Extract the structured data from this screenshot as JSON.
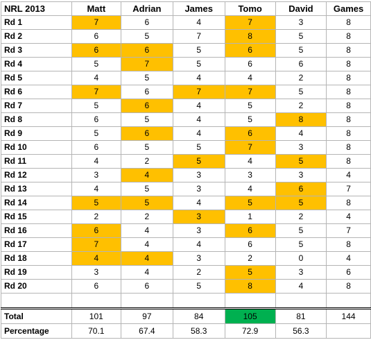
{
  "colors": {
    "highlight": "#ffc000",
    "best_total": "#00b050",
    "grid": "#b4b4b4"
  },
  "corner_label": "NRL 2013",
  "columns": [
    "Matt",
    "Adrian",
    "James",
    "Tomo",
    "David",
    "Games"
  ],
  "rounds": [
    {
      "label": "Rd 1",
      "values": [
        "7",
        "6",
        "4",
        "7",
        "3",
        "8"
      ],
      "highlight": [
        true,
        false,
        false,
        true,
        false,
        false
      ]
    },
    {
      "label": "Rd 2",
      "values": [
        "6",
        "5",
        "7",
        "8",
        "5",
        "8"
      ],
      "highlight": [
        false,
        false,
        false,
        true,
        false,
        false
      ]
    },
    {
      "label": "Rd 3",
      "values": [
        "6",
        "6",
        "5",
        "6",
        "5",
        "8"
      ],
      "highlight": [
        true,
        true,
        false,
        true,
        false,
        false
      ]
    },
    {
      "label": "Rd 4",
      "values": [
        "5",
        "7",
        "5",
        "6",
        "6",
        "8"
      ],
      "highlight": [
        false,
        true,
        false,
        false,
        false,
        false
      ]
    },
    {
      "label": "Rd 5",
      "values": [
        "4",
        "5",
        "4",
        "4",
        "2",
        "8"
      ],
      "highlight": [
        false,
        false,
        false,
        false,
        false,
        false
      ]
    },
    {
      "label": "Rd 6",
      "values": [
        "7",
        "6",
        "7",
        "7",
        "5",
        "8"
      ],
      "highlight": [
        true,
        false,
        true,
        true,
        false,
        false
      ]
    },
    {
      "label": "Rd 7",
      "values": [
        "5",
        "6",
        "4",
        "5",
        "2",
        "8"
      ],
      "highlight": [
        false,
        true,
        false,
        false,
        false,
        false
      ]
    },
    {
      "label": "Rd 8",
      "values": [
        "6",
        "5",
        "4",
        "5",
        "8",
        "8"
      ],
      "highlight": [
        false,
        false,
        false,
        false,
        true,
        false
      ]
    },
    {
      "label": "Rd 9",
      "values": [
        "5",
        "6",
        "4",
        "6",
        "4",
        "8"
      ],
      "highlight": [
        false,
        true,
        false,
        true,
        false,
        false
      ]
    },
    {
      "label": "Rd 10",
      "values": [
        "6",
        "5",
        "5",
        "7",
        "3",
        "8"
      ],
      "highlight": [
        false,
        false,
        false,
        true,
        false,
        false
      ]
    },
    {
      "label": "Rd 11",
      "values": [
        "4",
        "2",
        "5",
        "4",
        "5",
        "8"
      ],
      "highlight": [
        false,
        false,
        true,
        false,
        true,
        false
      ]
    },
    {
      "label": "Rd 12",
      "values": [
        "3",
        "4",
        "3",
        "3",
        "3",
        "4"
      ],
      "highlight": [
        false,
        true,
        false,
        false,
        false,
        false
      ]
    },
    {
      "label": "Rd 13",
      "values": [
        "4",
        "5",
        "3",
        "4",
        "6",
        "7"
      ],
      "highlight": [
        false,
        false,
        false,
        false,
        true,
        false
      ]
    },
    {
      "label": "Rd 14",
      "values": [
        "5",
        "5",
        "4",
        "5",
        "5",
        "8"
      ],
      "highlight": [
        true,
        true,
        false,
        true,
        true,
        false
      ]
    },
    {
      "label": "Rd 15",
      "values": [
        "2",
        "2",
        "3",
        "1",
        "2",
        "4"
      ],
      "highlight": [
        false,
        false,
        true,
        false,
        false,
        false
      ]
    },
    {
      "label": "Rd 16",
      "values": [
        "6",
        "4",
        "3",
        "6",
        "5",
        "7"
      ],
      "highlight": [
        true,
        false,
        false,
        true,
        false,
        false
      ]
    },
    {
      "label": "Rd 17",
      "values": [
        "7",
        "4",
        "4",
        "6",
        "5",
        "8"
      ],
      "highlight": [
        true,
        false,
        false,
        false,
        false,
        false
      ]
    },
    {
      "label": "Rd 18",
      "values": [
        "4",
        "4",
        "3",
        "2",
        "0",
        "4"
      ],
      "highlight": [
        true,
        true,
        false,
        false,
        false,
        false
      ]
    },
    {
      "label": "Rd 19",
      "values": [
        "3",
        "4",
        "2",
        "5",
        "3",
        "6"
      ],
      "highlight": [
        false,
        false,
        false,
        true,
        false,
        false
      ]
    },
    {
      "label": "Rd 20",
      "values": [
        "6",
        "6",
        "5",
        "8",
        "4",
        "8"
      ],
      "highlight": [
        false,
        false,
        false,
        true,
        false,
        false
      ]
    }
  ],
  "total": {
    "label": "Total",
    "values": [
      "101",
      "97",
      "84",
      "105",
      "81",
      "144"
    ],
    "green": [
      false,
      false,
      false,
      true,
      false,
      false
    ]
  },
  "percentage": {
    "label": "Percentage",
    "values": [
      "70.1",
      "67.4",
      "58.3",
      "72.9",
      "56.3",
      ""
    ]
  }
}
